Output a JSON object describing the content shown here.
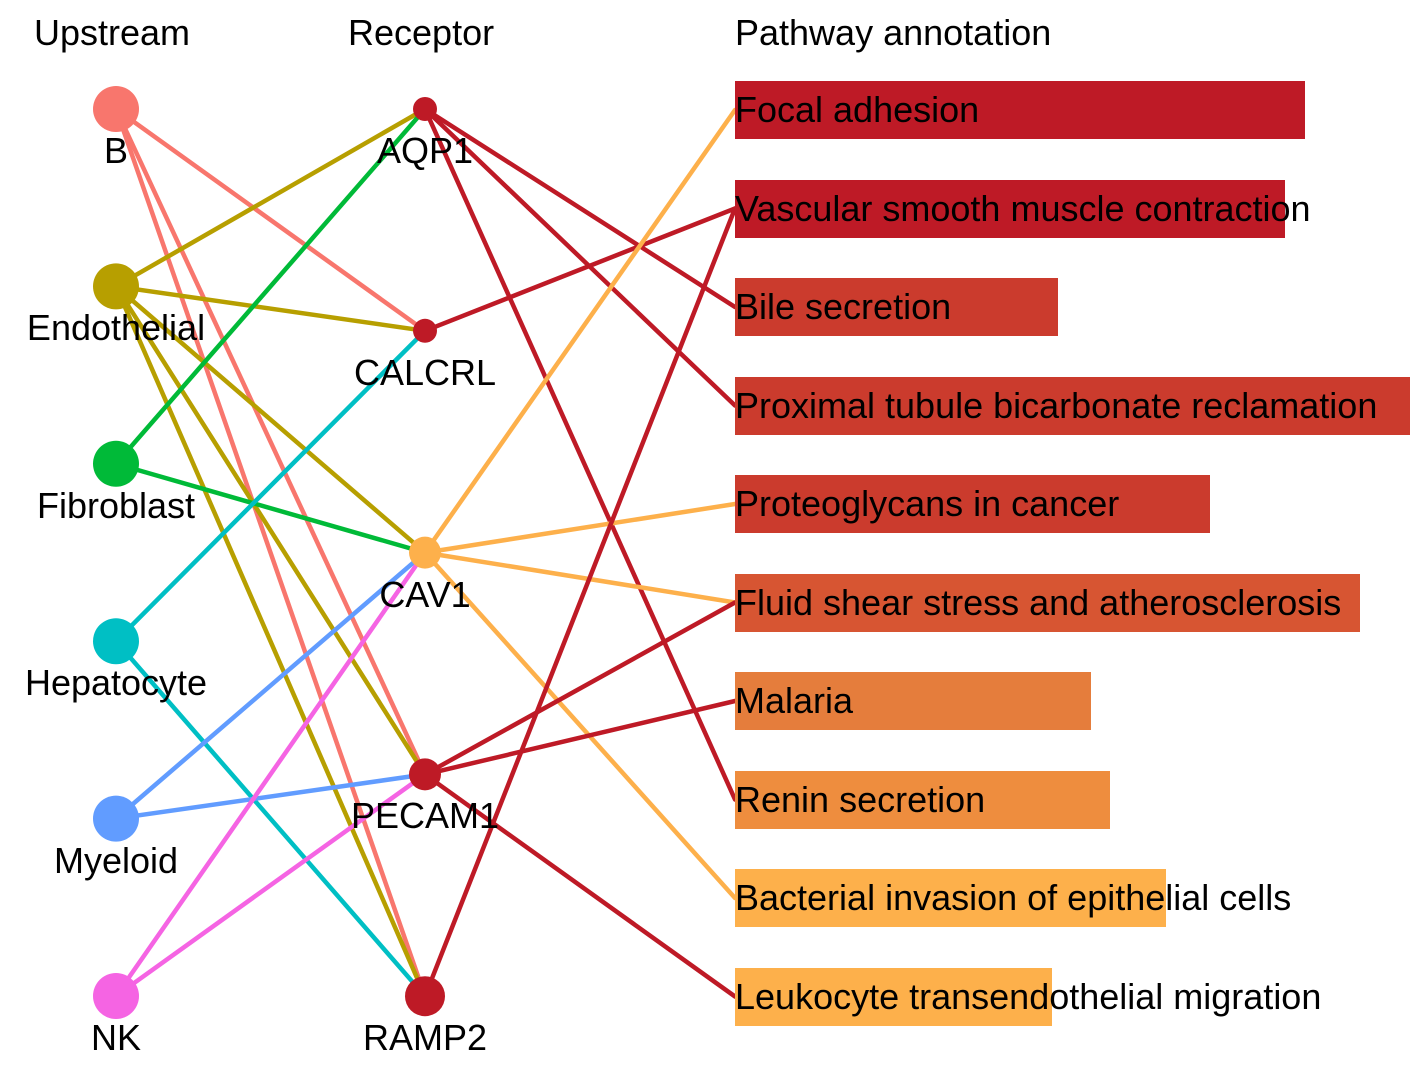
{
  "headers": {
    "upstream": "Upstream",
    "receptor": "Receptor",
    "pathway": "Pathway annotation"
  },
  "upstream": [
    {
      "name": "B",
      "color": "#F8766D"
    },
    {
      "name": "Endothelial",
      "color": "#B79F00"
    },
    {
      "name": "Fibroblast",
      "color": "#00BA38"
    },
    {
      "name": "Hepatocyte",
      "color": "#00BFC4"
    },
    {
      "name": "Myeloid",
      "color": "#619CFF"
    },
    {
      "name": "NK",
      "color": "#F564E3"
    }
  ],
  "receptors": [
    {
      "name": "AQP1",
      "color": "#BE1A26",
      "size": "small"
    },
    {
      "name": "CALCRL",
      "color": "#BE1A26",
      "size": "small"
    },
    {
      "name": "CAV1",
      "color": "#FDB04B",
      "size": "medium"
    },
    {
      "name": "PECAM1",
      "color": "#BE1A26",
      "size": "medium"
    },
    {
      "name": "RAMP2",
      "color": "#BE1A26",
      "size": "large"
    }
  ],
  "pathways": [
    {
      "name": "Focal adhesion",
      "value": 0.845,
      "color": "#BE1A26"
    },
    {
      "name": "Vascular smooth muscle contraction",
      "value": 0.815,
      "color": "#BE1A26"
    },
    {
      "name": "Bile secretion",
      "value": 0.479,
      "color": "#CB3B2D"
    },
    {
      "name": "Proximal tubule bicarbonate reclamation",
      "value": 1.0,
      "color": "#CB3B2D"
    },
    {
      "name": "Proteoglycans in cancer",
      "value": 0.704,
      "color": "#CB3B2D"
    },
    {
      "name": "Fluid shear stress and atherosclerosis",
      "value": 0.926,
      "color": "#D75532"
    },
    {
      "name": "Malaria",
      "value": 0.527,
      "color": "#E57D3C"
    },
    {
      "name": "Renin secretion",
      "value": 0.556,
      "color": "#EE8D3E"
    },
    {
      "name": "Bacterial invasion of epithelial cells",
      "value": 0.639,
      "color": "#FDB04B"
    },
    {
      "name": "Leukocyte transendothelial migration",
      "value": 0.47,
      "color": "#FDB04B"
    }
  ],
  "upstream_links": [
    {
      "from": "B",
      "to": "CALCRL"
    },
    {
      "from": "B",
      "to": "PECAM1"
    },
    {
      "from": "B",
      "to": "RAMP2"
    },
    {
      "from": "Endothelial",
      "to": "AQP1"
    },
    {
      "from": "Endothelial",
      "to": "CALCRL"
    },
    {
      "from": "Endothelial",
      "to": "CAV1"
    },
    {
      "from": "Endothelial",
      "to": "PECAM1"
    },
    {
      "from": "Endothelial",
      "to": "RAMP2"
    },
    {
      "from": "Fibroblast",
      "to": "AQP1"
    },
    {
      "from": "Fibroblast",
      "to": "CAV1"
    },
    {
      "from": "Hepatocyte",
      "to": "CALCRL"
    },
    {
      "from": "Hepatocyte",
      "to": "RAMP2"
    },
    {
      "from": "Myeloid",
      "to": "CAV1"
    },
    {
      "from": "Myeloid",
      "to": "PECAM1"
    },
    {
      "from": "NK",
      "to": "CAV1"
    },
    {
      "from": "NK",
      "to": "PECAM1"
    }
  ],
  "pathway_links": [
    {
      "from": "AQP1",
      "to": "Bile secretion"
    },
    {
      "from": "AQP1",
      "to": "Proximal tubule bicarbonate reclamation"
    },
    {
      "from": "AQP1",
      "to": "Renin secretion"
    },
    {
      "from": "CALCRL",
      "to": "Vascular smooth muscle contraction"
    },
    {
      "from": "CAV1",
      "to": "Focal adhesion"
    },
    {
      "from": "CAV1",
      "to": "Proteoglycans in cancer"
    },
    {
      "from": "CAV1",
      "to": "Fluid shear stress and atherosclerosis"
    },
    {
      "from": "CAV1",
      "to": "Bacterial invasion of epithelial cells"
    },
    {
      "from": "PECAM1",
      "to": "Fluid shear stress and atherosclerosis"
    },
    {
      "from": "PECAM1",
      "to": "Malaria"
    },
    {
      "from": "PECAM1",
      "to": "Leukocyte transendothelial migration"
    },
    {
      "from": "RAMP2",
      "to": "Vascular smooth muscle contraction"
    }
  ]
}
